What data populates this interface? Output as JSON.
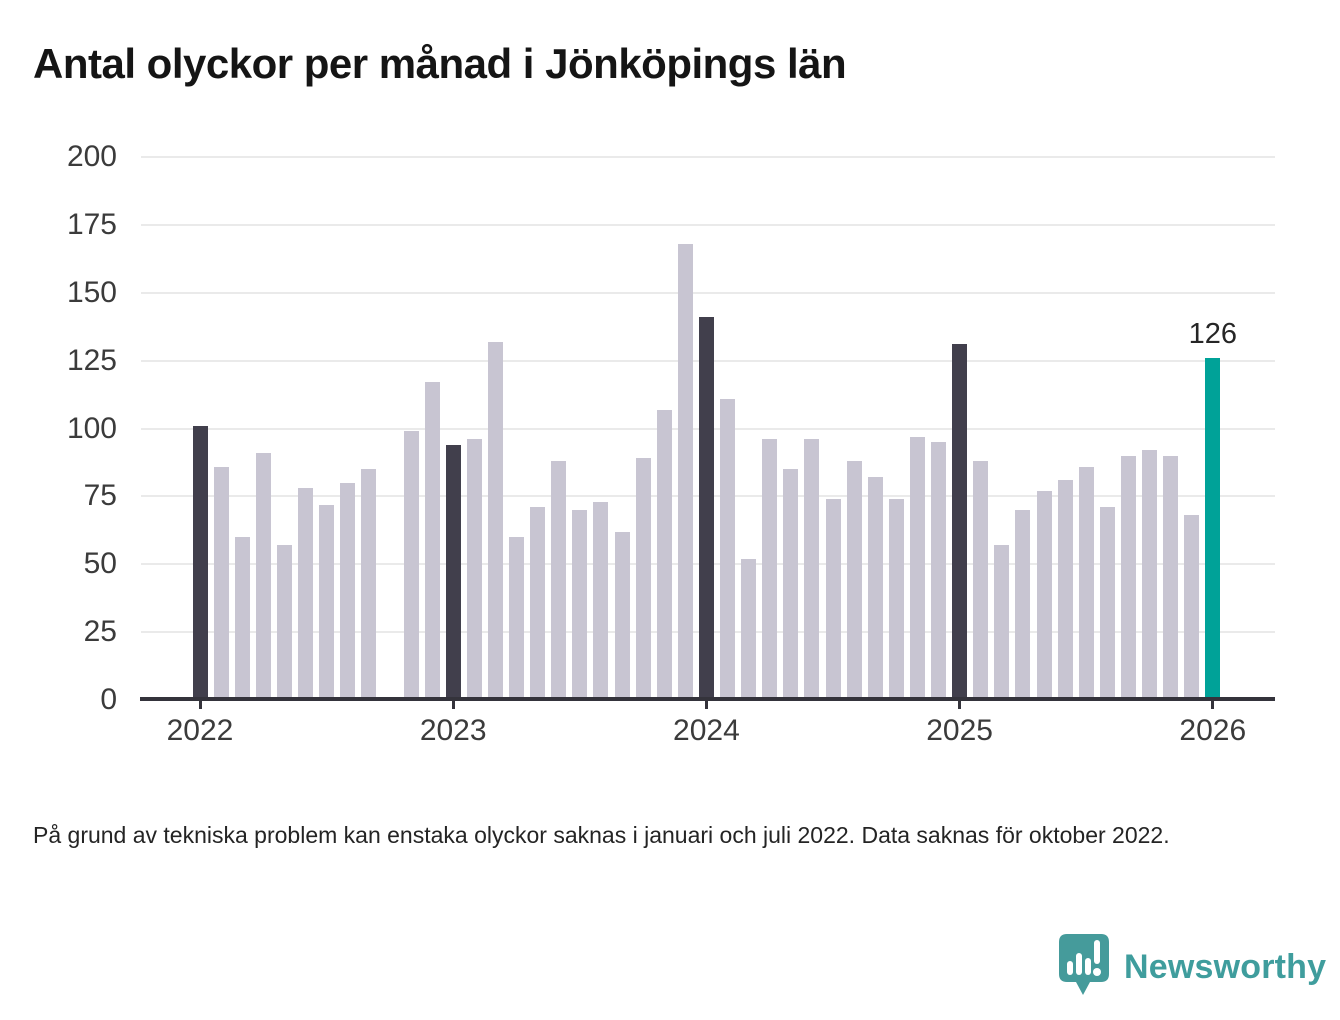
{
  "title": "Antal olyckor per månad i Jönköpings län",
  "note": "På grund av tekniska problem kan enstaka olyckor saknas i januari och juli 2022. Data saknas för oktober 2022.",
  "logo": {
    "text": "Newsworthy",
    "icon": "newsworthy-speech-bubble-bar-chart-icon"
  },
  "chart_data": {
    "type": "bar",
    "title": "Antal olyckor per månad i Jönköpings län",
    "xlabel": "",
    "ylabel": "",
    "ylim": [
      0,
      200
    ],
    "y_ticks": [
      0,
      25,
      50,
      75,
      100,
      125,
      150,
      175,
      200
    ],
    "x_tick_labels": [
      "2022",
      "2023",
      "2024",
      "2025",
      "2026"
    ],
    "grid": "horizontal",
    "legend": "none",
    "colors": {
      "default": "#c8c5d2",
      "dark": "#413f4c",
      "latest": "#00a298",
      "gridline": "#eaeaea",
      "axis": "#34333b"
    },
    "annotation": {
      "text": "126",
      "x": "2026-01"
    },
    "missing_months": [
      "2022-10"
    ],
    "bars": [
      {
        "x": "2022-01",
        "value": 101,
        "style": "dark"
      },
      {
        "x": "2022-02",
        "value": 86,
        "style": "default"
      },
      {
        "x": "2022-03",
        "value": 60,
        "style": "default"
      },
      {
        "x": "2022-04",
        "value": 91,
        "style": "default"
      },
      {
        "x": "2022-05",
        "value": 57,
        "style": "default"
      },
      {
        "x": "2022-06",
        "value": 78,
        "style": "default"
      },
      {
        "x": "2022-07",
        "value": 72,
        "style": "default"
      },
      {
        "x": "2022-08",
        "value": 80,
        "style": "default"
      },
      {
        "x": "2022-09",
        "value": 85,
        "style": "default"
      },
      {
        "x": "2022-10",
        "value": null,
        "style": "missing"
      },
      {
        "x": "2022-11",
        "value": 99,
        "style": "default"
      },
      {
        "x": "2022-12",
        "value": 117,
        "style": "default"
      },
      {
        "x": "2023-01",
        "value": 94,
        "style": "dark"
      },
      {
        "x": "2023-02",
        "value": 96,
        "style": "default"
      },
      {
        "x": "2023-03",
        "value": 132,
        "style": "default"
      },
      {
        "x": "2023-04",
        "value": 60,
        "style": "default"
      },
      {
        "x": "2023-05",
        "value": 71,
        "style": "default"
      },
      {
        "x": "2023-06",
        "value": 88,
        "style": "default"
      },
      {
        "x": "2023-07",
        "value": 70,
        "style": "default"
      },
      {
        "x": "2023-08",
        "value": 73,
        "style": "default"
      },
      {
        "x": "2023-09",
        "value": 62,
        "style": "default"
      },
      {
        "x": "2023-10",
        "value": 89,
        "style": "default"
      },
      {
        "x": "2023-11",
        "value": 107,
        "style": "default"
      },
      {
        "x": "2023-12",
        "value": 168,
        "style": "default"
      },
      {
        "x": "2024-01",
        "value": 141,
        "style": "dark"
      },
      {
        "x": "2024-02",
        "value": 111,
        "style": "default"
      },
      {
        "x": "2024-03",
        "value": 52,
        "style": "default"
      },
      {
        "x": "2024-04",
        "value": 96,
        "style": "default"
      },
      {
        "x": "2024-05",
        "value": 85,
        "style": "default"
      },
      {
        "x": "2024-06",
        "value": 96,
        "style": "default"
      },
      {
        "x": "2024-07",
        "value": 74,
        "style": "default"
      },
      {
        "x": "2024-08",
        "value": 88,
        "style": "default"
      },
      {
        "x": "2024-09",
        "value": 82,
        "style": "default"
      },
      {
        "x": "2024-10",
        "value": 74,
        "style": "default"
      },
      {
        "x": "2024-11",
        "value": 97,
        "style": "default"
      },
      {
        "x": "2024-12",
        "value": 95,
        "style": "default"
      },
      {
        "x": "2025-01",
        "value": 131,
        "style": "dark"
      },
      {
        "x": "2025-02",
        "value": 88,
        "style": "default"
      },
      {
        "x": "2025-03",
        "value": 57,
        "style": "default"
      },
      {
        "x": "2025-04",
        "value": 70,
        "style": "default"
      },
      {
        "x": "2025-05",
        "value": 77,
        "style": "default"
      },
      {
        "x": "2025-06",
        "value": 81,
        "style": "default"
      },
      {
        "x": "2025-07",
        "value": 86,
        "style": "default"
      },
      {
        "x": "2025-08",
        "value": 71,
        "style": "default"
      },
      {
        "x": "2025-09",
        "value": 90,
        "style": "default"
      },
      {
        "x": "2025-10",
        "value": 92,
        "style": "default"
      },
      {
        "x": "2025-11",
        "value": 90,
        "style": "default"
      },
      {
        "x": "2025-12",
        "value": 68,
        "style": "default"
      },
      {
        "x": "2026-01",
        "value": 126,
        "style": "latest"
      }
    ]
  }
}
